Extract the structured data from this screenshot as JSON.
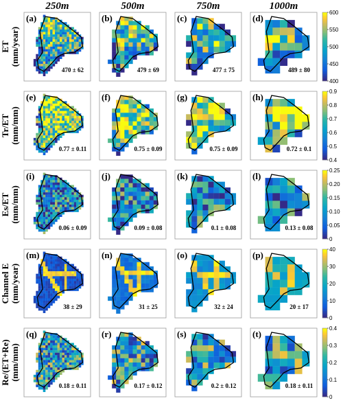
{
  "figure": {
    "column_titles": [
      "250m",
      "500m",
      "750m",
      "1000m"
    ],
    "rows": [
      {
        "label_line1": "ET",
        "label_line2": "(mm/year)",
        "colorbar_ticks": [
          "600",
          "550",
          "500",
          "450",
          "400"
        ],
        "vmin": 400,
        "vmax": 600,
        "panels": [
          {
            "letter": "(a)",
            "stat": "470 ± 62"
          },
          {
            "letter": "(b)",
            "stat": "479 ± 69"
          },
          {
            "letter": "(c)",
            "stat": "477 ± 75"
          },
          {
            "letter": "(d)",
            "stat": "489 ± 80"
          }
        ]
      },
      {
        "label_line1": "Tr/ET",
        "label_line2": "(mm/mm)",
        "colorbar_ticks": [
          "0.9",
          "0.8",
          "0.7",
          "0.6",
          "0.5",
          "0.4"
        ],
        "vmin": 0.4,
        "vmax": 0.9,
        "panels": [
          {
            "letter": "(e)",
            "stat": "0.77 ± 0.11"
          },
          {
            "letter": "(f)",
            "stat": "0.75 ± 0.09"
          },
          {
            "letter": "(g)",
            "stat": "0.75 ± 0.09"
          },
          {
            "letter": "(h)",
            "stat": "0.72 ± 0.1"
          }
        ]
      },
      {
        "label_line1": "Es/ET",
        "label_line2": "(mm/mm)",
        "colorbar_ticks": [
          "0.25",
          "0.20",
          "0.15",
          "0.10",
          "0.05",
          "0"
        ],
        "vmin": 0,
        "vmax": 0.25,
        "panels": [
          {
            "letter": "(i)",
            "stat": "0.06 ± 0.09"
          },
          {
            "letter": "(j)",
            "stat": "0.09 ± 0.08"
          },
          {
            "letter": "(k)",
            "stat": "0.1 ± 0.08"
          },
          {
            "letter": "(l)",
            "stat": "0.13 ± 0.08"
          }
        ]
      },
      {
        "label_line1": "Channel E",
        "label_line2": "(mm/year)",
        "colorbar_ticks": [
          "40",
          "30",
          "20",
          "10",
          "0"
        ],
        "vmin": 0,
        "vmax": 40,
        "panels": [
          {
            "letter": "(m)",
            "stat": "38 ± 29"
          },
          {
            "letter": "(n)",
            "stat": "31 ± 25"
          },
          {
            "letter": "(o)",
            "stat": "32 ± 24"
          },
          {
            "letter": "(p)",
            "stat": "20 ± 17"
          }
        ]
      },
      {
        "label_line1": "Re/(ET+Re)",
        "label_line2": "(mm/mm)",
        "colorbar_ticks": [
          "0.4",
          "0.3",
          "0.2",
          "0.1",
          "0"
        ],
        "vmin": 0,
        "vmax": 0.4,
        "panels": [
          {
            "letter": "(q)",
            "stat": "0.18 ± 0.11"
          },
          {
            "letter": "(r)",
            "stat": "0.17 ± 0.12"
          },
          {
            "letter": "(s)",
            "stat": "0.2 ± 0.12"
          },
          {
            "letter": "(t)",
            "stat": "0.18 ± 0.11"
          }
        ]
      }
    ]
  },
  "chart_data": {
    "type": "heatmap",
    "colormap": "parula",
    "colors": {
      "low": "#352a87",
      "mid": "#21b1a4",
      "high": "#f9fb0e"
    },
    "columns": [
      "250m",
      "500m",
      "750m",
      "1000m"
    ],
    "rows": [
      {
        "variable": "ET (mm/year)",
        "range": [
          400,
          600
        ],
        "mean": [
          470,
          479,
          477,
          489
        ],
        "std": [
          62,
          69,
          75,
          80
        ]
      },
      {
        "variable": "Tr/ET (mm/mm)",
        "range": [
          0.4,
          0.9
        ],
        "mean": [
          0.77,
          0.75,
          0.75,
          0.72
        ],
        "std": [
          0.11,
          0.09,
          0.09,
          0.1
        ]
      },
      {
        "variable": "Es/ET (mm/mm)",
        "range": [
          0,
          0.25
        ],
        "mean": [
          0.06,
          0.09,
          0.1,
          0.13
        ],
        "std": [
          0.09,
          0.08,
          0.08,
          0.08
        ]
      },
      {
        "variable": "Channel E (mm/year)",
        "range": [
          0,
          40
        ],
        "mean": [
          38,
          31,
          32,
          20
        ],
        "std": [
          29,
          25,
          24,
          17
        ]
      },
      {
        "variable": "Re/(ET+Re) (mm/mm)",
        "range": [
          0,
          0.4
        ],
        "mean": [
          0.18,
          0.17,
          0.2,
          0.18
        ],
        "std": [
          0.11,
          0.12,
          0.12,
          0.11
        ]
      }
    ]
  }
}
